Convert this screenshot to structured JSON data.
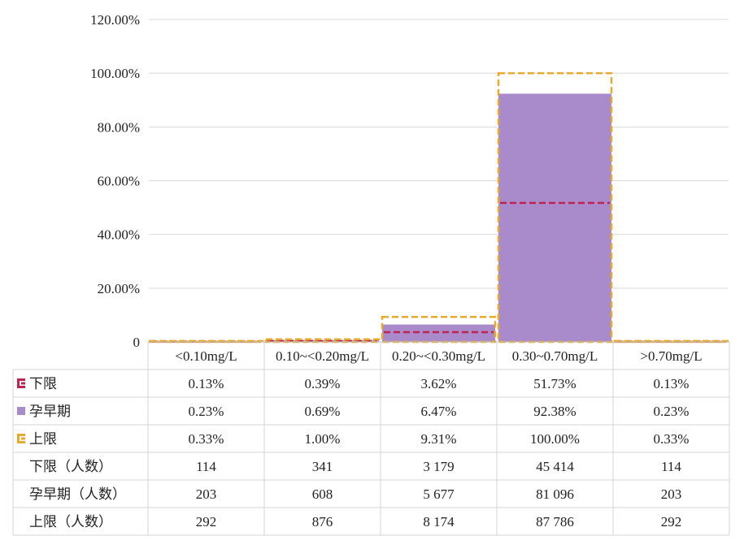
{
  "chart_data": {
    "type": "bar",
    "categories": [
      "<0.10mg/L",
      "0.10~<0.20mg/L",
      "0.20~<0.30mg/L",
      "0.30~0.70mg/L",
      ">0.70mg/L"
    ],
    "series": [
      {
        "name": "下限",
        "values": [
          0.13,
          0.39,
          3.62,
          51.73,
          0.13
        ],
        "style": "dashed-line",
        "color": "#c0234e"
      },
      {
        "name": "孕早期",
        "values": [
          0.23,
          0.69,
          6.47,
          92.38,
          0.23
        ],
        "style": "filled-bar",
        "color": "#a98bcc"
      },
      {
        "name": "上限",
        "values": [
          0.33,
          1.0,
          9.31,
          100.0,
          0.33
        ],
        "style": "dashed-outline",
        "color": "#e8a92c"
      }
    ],
    "ylim": [
      0,
      120
    ],
    "y_ticks": [
      {
        "value": 0,
        "label": "0"
      },
      {
        "value": 20,
        "label": "20.00%"
      },
      {
        "value": 40,
        "label": "40.00%"
      },
      {
        "value": 60,
        "label": "60.00%"
      },
      {
        "value": 80,
        "label": "80.00%"
      },
      {
        "value": 100,
        "label": "100.00%"
      },
      {
        "value": 120,
        "label": "120.00%"
      }
    ],
    "grid": true,
    "legend": "data-table",
    "data_table": {
      "rows": [
        {
          "label": "下限",
          "marker": "lower",
          "values": [
            "0.13%",
            "0.39%",
            "3.62%",
            "51.73%",
            "0.13%"
          ]
        },
        {
          "label": "孕早期",
          "marker": "main",
          "values": [
            "0.23%",
            "0.69%",
            "6.47%",
            "92.38%",
            "0.23%"
          ]
        },
        {
          "label": "上限",
          "marker": "upper",
          "values": [
            "0.33%",
            "1.00%",
            "9.31%",
            "100.00%",
            "0.33%"
          ]
        },
        {
          "label": "下限（人数）",
          "marker": "",
          "values": [
            "114",
            "341",
            "3 179",
            "45 414",
            "114"
          ]
        },
        {
          "label": "孕早期（人数）",
          "marker": "",
          "values": [
            "203",
            "608",
            "5 677",
            "81 096",
            "203"
          ]
        },
        {
          "label": "上限（人数）",
          "marker": "",
          "values": [
            "292",
            "876",
            "8 174",
            "87 786",
            "292"
          ]
        }
      ]
    }
  }
}
